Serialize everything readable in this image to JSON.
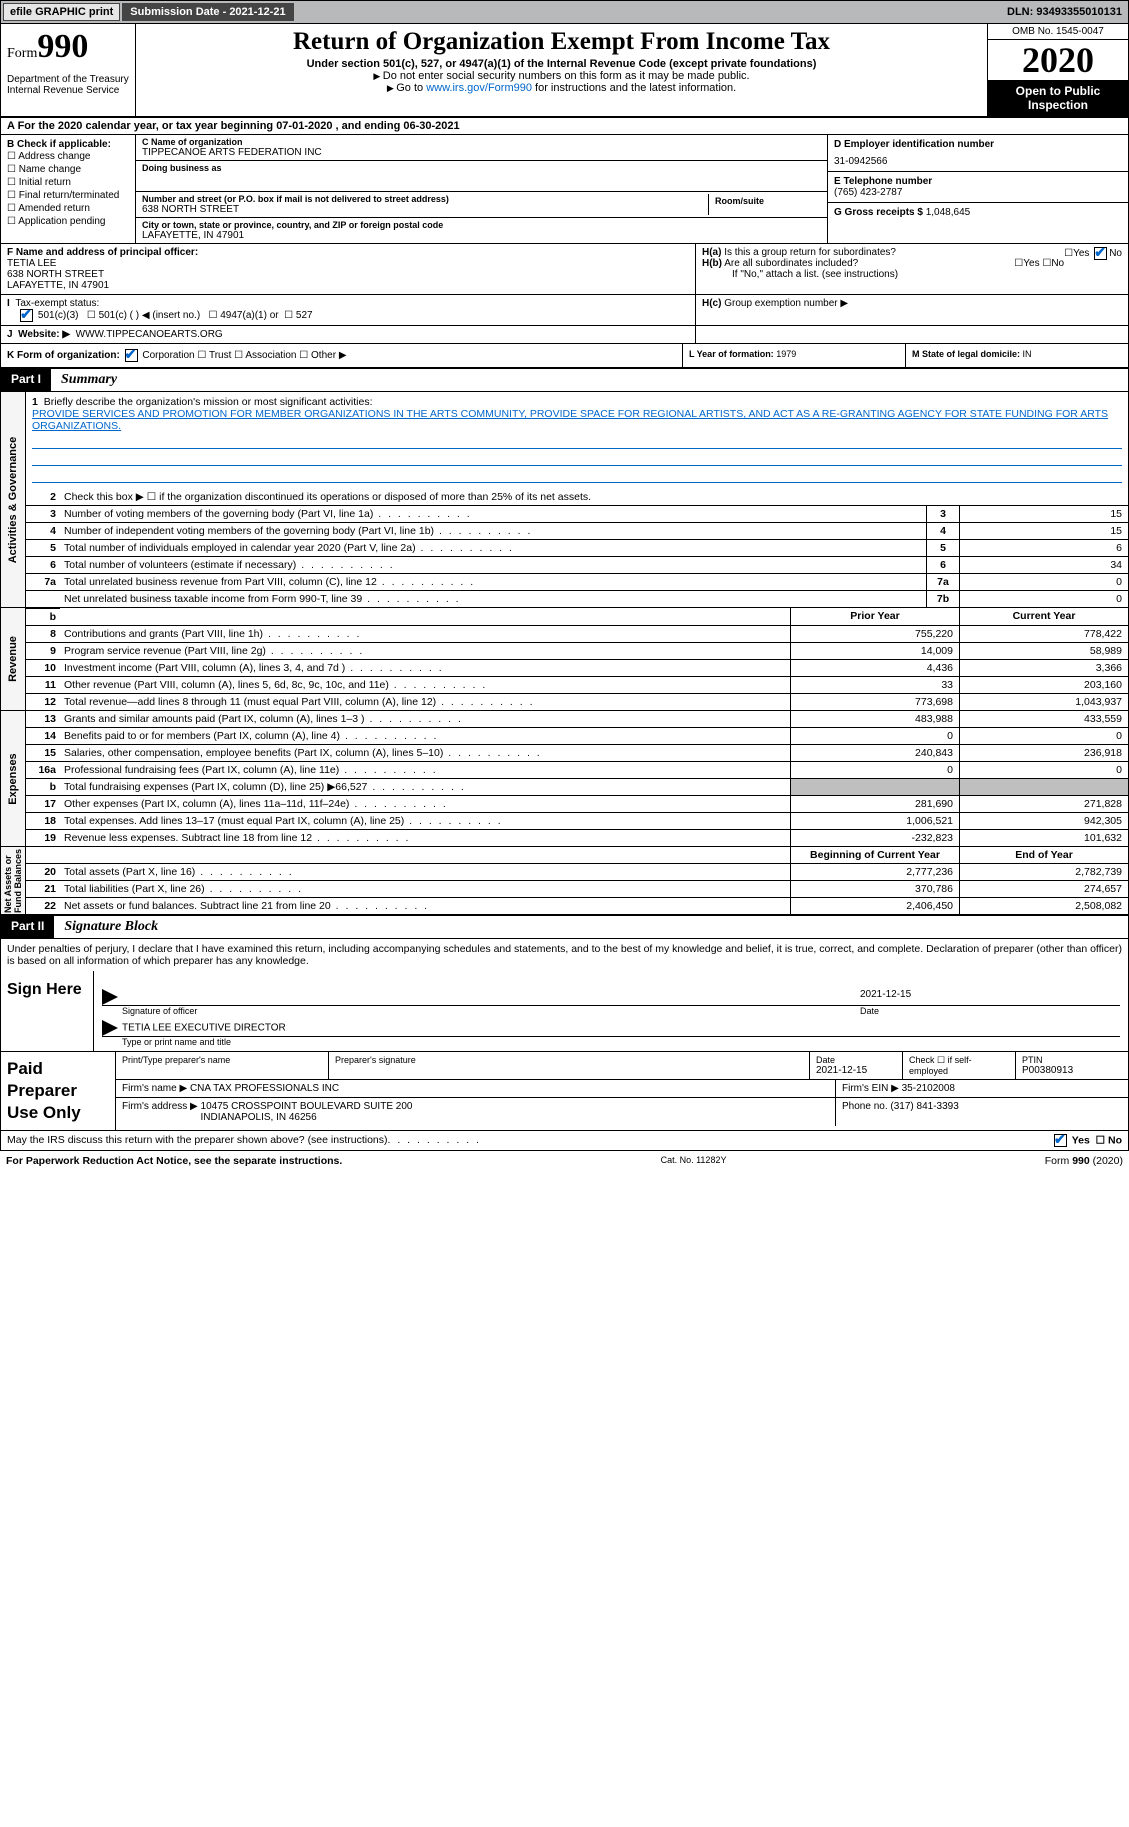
{
  "topbar": {
    "efile": "efile GRAPHIC print",
    "submission": "Submission Date - 2021-12-21",
    "dln": "DLN: 93493355010131"
  },
  "header": {
    "form_prefix": "Form",
    "form_num": "990",
    "title": "Return of Organization Exempt From Income Tax",
    "subtitle": "Under section 501(c), 527, or 4947(a)(1) of the Internal Revenue Code (except private foundations)",
    "note1": "Do not enter social security numbers on this form as it may be made public.",
    "note2_pre": "Go to ",
    "note2_link": "www.irs.gov/Form990",
    "note2_post": " for instructions and the latest information.",
    "dept": "Department of the Treasury\nInternal Revenue Service",
    "omb": "OMB No. 1545-0047",
    "year": "2020",
    "public": "Open to Public Inspection"
  },
  "period": "A For the 2020 calendar year, or tax year beginning 07-01-2020   , and ending 06-30-2021",
  "sectionB": {
    "label": "B Check if applicable:",
    "items": [
      "Address change",
      "Name change",
      "Initial return",
      "Final return/terminated",
      "Amended return",
      "Application pending"
    ]
  },
  "sectionC": {
    "name_lbl": "C Name of organization",
    "name": "TIPPECANOE ARTS FEDERATION INC",
    "dba_lbl": "Doing business as",
    "dba": "",
    "addr_lbl": "Number and street (or P.O. box if mail is not delivered to street address)",
    "addr": "638 NORTH STREET",
    "suite_lbl": "Room/suite",
    "suite": "",
    "city_lbl": "City or town, state or province, country, and ZIP or foreign postal code",
    "city": "LAFAYETTE, IN  47901"
  },
  "sectionD": {
    "lbl": "D Employer identification number",
    "val": "31-0942566"
  },
  "sectionE": {
    "lbl": "E Telephone number",
    "val": "(765) 423-2787"
  },
  "sectionG": {
    "lbl": "G Gross receipts $",
    "val": "1,048,645"
  },
  "sectionF": {
    "lbl": "F Name and address of principal officer:",
    "name": "TETIA LEE",
    "addr1": "638 NORTH STREET",
    "addr2": "LAFAYETTE, IN  47901"
  },
  "sectionH": {
    "a": "Is this a group return for subordinates?",
    "a_yes": "Yes",
    "a_no": "No",
    "b": "Are all subordinates included?",
    "b_yes": "Yes",
    "b_no": "No",
    "b_note": "If \"No,\" attach a list. (see instructions)",
    "c": "Group exemption number ▶"
  },
  "sectionI": {
    "lbl": "Tax-exempt status:",
    "o1": "501(c)(3)",
    "o2": "501(c) (  ) ◀ (insert no.)",
    "o3": "4947(a)(1) or",
    "o4": "527"
  },
  "sectionJ": {
    "lbl": "Website: ▶",
    "val": "WWW.TIPPECANOEARTS.ORG"
  },
  "sectionK": {
    "lbl": "K Form of organization:",
    "o1": "Corporation",
    "o2": "Trust",
    "o3": "Association",
    "o4": "Other ▶"
  },
  "sectionL": {
    "lbl": "L Year of formation:",
    "val": "1979"
  },
  "sectionM": {
    "lbl": "M State of legal domicile:",
    "val": "IN"
  },
  "part1": {
    "num": "Part I",
    "title": "Summary"
  },
  "mission": {
    "lbl": "Briefly describe the organization's mission or most significant activities:",
    "text": "PROVIDE SERVICES AND PROMOTION FOR MEMBER ORGANIZATIONS IN THE ARTS COMMUNITY, PROVIDE SPACE FOR REGIONAL ARTISTS, AND ACT AS A RE-GRANTING AGENCY FOR STATE FUNDING FOR ARTS ORGANIZATIONS."
  },
  "line2": "Check this box ▶ ☐  if the organization discontinued its operations or disposed of more than 25% of its net assets.",
  "gov_lines": [
    {
      "n": "3",
      "t": "Number of voting members of the governing body (Part VI, line 1a)",
      "box": "3",
      "v": "15"
    },
    {
      "n": "4",
      "t": "Number of independent voting members of the governing body (Part VI, line 1b)",
      "box": "4",
      "v": "15"
    },
    {
      "n": "5",
      "t": "Total number of individuals employed in calendar year 2020 (Part V, line 2a)",
      "box": "5",
      "v": "6"
    },
    {
      "n": "6",
      "t": "Total number of volunteers (estimate if necessary)",
      "box": "6",
      "v": "34"
    },
    {
      "n": "7a",
      "t": "Total unrelated business revenue from Part VIII, column (C), line 12",
      "box": "7a",
      "v": "0"
    },
    {
      "n": "",
      "t": "Net unrelated business taxable income from Form 990-T, line 39",
      "box": "7b",
      "v": "0"
    }
  ],
  "py_cy_hdr": {
    "py": "Prior Year",
    "cy": "Current Year"
  },
  "rev_lines": [
    {
      "n": "8",
      "t": "Contributions and grants (Part VIII, line 1h)",
      "py": "755,220",
      "cy": "778,422"
    },
    {
      "n": "9",
      "t": "Program service revenue (Part VIII, line 2g)",
      "py": "14,009",
      "cy": "58,989"
    },
    {
      "n": "10",
      "t": "Investment income (Part VIII, column (A), lines 3, 4, and 7d )",
      "py": "4,436",
      "cy": "3,366"
    },
    {
      "n": "11",
      "t": "Other revenue (Part VIII, column (A), lines 5, 6d, 8c, 9c, 10c, and 11e)",
      "py": "33",
      "cy": "203,160"
    },
    {
      "n": "12",
      "t": "Total revenue—add lines 8 through 11 (must equal Part VIII, column (A), line 12)",
      "py": "773,698",
      "cy": "1,043,937"
    }
  ],
  "exp_lines": [
    {
      "n": "13",
      "t": "Grants and similar amounts paid (Part IX, column (A), lines 1–3 )",
      "py": "483,988",
      "cy": "433,559"
    },
    {
      "n": "14",
      "t": "Benefits paid to or for members (Part IX, column (A), line 4)",
      "py": "0",
      "cy": "0"
    },
    {
      "n": "15",
      "t": "Salaries, other compensation, employee benefits (Part IX, column (A), lines 5–10)",
      "py": "240,843",
      "cy": "236,918"
    },
    {
      "n": "16a",
      "t": "Professional fundraising fees (Part IX, column (A), line 11e)",
      "py": "0",
      "cy": "0"
    },
    {
      "n": "b",
      "t": "Total fundraising expenses (Part IX, column (D), line 25) ▶66,527",
      "py": "",
      "cy": "",
      "shaded": true
    },
    {
      "n": "17",
      "t": "Other expenses (Part IX, column (A), lines 11a–11d, 11f–24e)",
      "py": "281,690",
      "cy": "271,828"
    },
    {
      "n": "18",
      "t": "Total expenses. Add lines 13–17 (must equal Part IX, column (A), line 25)",
      "py": "1,006,521",
      "cy": "942,305"
    },
    {
      "n": "19",
      "t": "Revenue less expenses. Subtract line 18 from line 12",
      "py": "-232,823",
      "cy": "101,632"
    }
  ],
  "na_hdr": {
    "py": "Beginning of Current Year",
    "cy": "End of Year"
  },
  "na_lines": [
    {
      "n": "20",
      "t": "Total assets (Part X, line 16)",
      "py": "2,777,236",
      "cy": "2,782,739"
    },
    {
      "n": "21",
      "t": "Total liabilities (Part X, line 26)",
      "py": "370,786",
      "cy": "274,657"
    },
    {
      "n": "22",
      "t": "Net assets or fund balances. Subtract line 21 from line 20",
      "py": "2,406,450",
      "cy": "2,508,082"
    }
  ],
  "part2": {
    "num": "Part II",
    "title": "Signature Block"
  },
  "sig_intro": "Under penalties of perjury, I declare that I have examined this return, including accompanying schedules and statements, and to the best of my knowledge and belief, it is true, correct, and complete. Declaration of preparer (other than officer) is based on all information of which preparer has any knowledge.",
  "sign": {
    "here": "Sign Here",
    "sig_lbl": "Signature of officer",
    "date_lbl": "Date",
    "date": "2021-12-15",
    "name": "TETIA LEE EXECUTIVE DIRECTOR",
    "name_lbl": "Type or print name and title"
  },
  "prep": {
    "title": "Paid Preparer Use Only",
    "h1": "Print/Type preparer's name",
    "h2": "Preparer's signature",
    "h3": "Date",
    "h3v": "2021-12-15",
    "h4": "Check ☐ if self-employed",
    "h5": "PTIN",
    "h5v": "P00380913",
    "firm_lbl": "Firm's name  ▶",
    "firm": "CNA TAX PROFESSIONALS INC",
    "ein_lbl": "Firm's EIN ▶",
    "ein": "35-2102008",
    "addr_lbl": "Firm's address ▶",
    "addr": "10475 CROSSPOINT BOULEVARD SUITE 200\nINDIANAPOLIS, IN  46256",
    "phone_lbl": "Phone no.",
    "phone": "(317) 841-3393"
  },
  "discuss": "May the IRS discuss this return with the preparer shown above? (see instructions)",
  "discuss_yes": "Yes",
  "discuss_no": "No",
  "footer": {
    "l": "For Paperwork Reduction Act Notice, see the separate instructions.",
    "c": "Cat. No. 11282Y",
    "r": "Form 990 (2020)"
  },
  "vtabs": {
    "gov": "Activities & Governance",
    "rev": "Revenue",
    "exp": "Expenses",
    "na": "Net Assets or\nFund Balances"
  },
  "bold7b": "b"
}
